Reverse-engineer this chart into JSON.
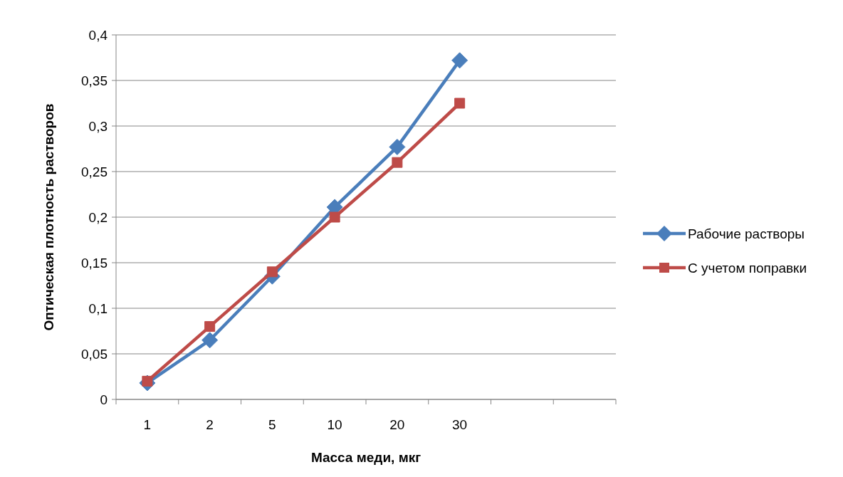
{
  "chart_data": {
    "type": "line",
    "xlabel": "Масса меди, мкг",
    "ylabel": "Оптическая плотность растворов",
    "categories": [
      "1",
      "2",
      "5",
      "10",
      "20",
      "30",
      null,
      null
    ],
    "series": [
      {
        "name": "Рабочие растворы",
        "color": "#4a7ebb",
        "marker": "diamond",
        "values": [
          0.018,
          0.065,
          0.135,
          0.211,
          0.277,
          0.372,
          null,
          null
        ]
      },
      {
        "name": "С учетом поправки",
        "color": "#be4b48",
        "marker": "square",
        "values": [
          0.02,
          0.08,
          0.14,
          0.2,
          0.26,
          0.325,
          null,
          null
        ]
      }
    ],
    "ylim": [
      0,
      0.4
    ],
    "yticks": [
      {
        "value": 0,
        "label": "0"
      },
      {
        "value": 0.05,
        "label": "0,05"
      },
      {
        "value": 0.1,
        "label": "0,1"
      },
      {
        "value": 0.15,
        "label": "0,15"
      },
      {
        "value": 0.2,
        "label": "0,2"
      },
      {
        "value": 0.25,
        "label": "0,25"
      },
      {
        "value": 0.3,
        "label": "0,3"
      },
      {
        "value": 0.35,
        "label": "0,35"
      },
      {
        "value": 0.4,
        "label": "0,4"
      }
    ],
    "grid": "y",
    "legend": "right",
    "line_style": "solid"
  }
}
